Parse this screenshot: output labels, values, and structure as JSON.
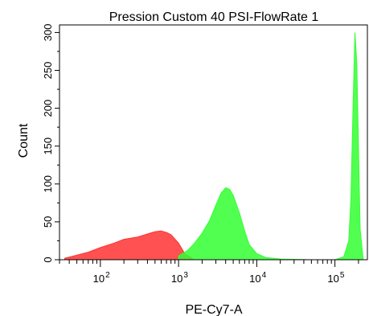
{
  "chart_data": {
    "type": "area",
    "title": "Pression Custom 40 PSI-FlowRate 1",
    "xlabel": "PE-Cy7-A",
    "ylabel": "Count",
    "x_scale": "log",
    "xlim": [
      30,
      260000
    ],
    "ylim": [
      0,
      310
    ],
    "x_major_ticks": [
      {
        "value": 100,
        "base": "10",
        "exp": "2"
      },
      {
        "value": 1000,
        "base": "10",
        "exp": "3"
      },
      {
        "value": 10000,
        "base": "10",
        "exp": "4"
      },
      {
        "value": 100000,
        "base": "10",
        "exp": "5"
      }
    ],
    "y_ticks": [
      "0",
      "50",
      "100",
      "150",
      "200",
      "250",
      "300"
    ],
    "y_tick_values": [
      0,
      50,
      100,
      150,
      200,
      250,
      300
    ],
    "series": [
      {
        "color": "#ff3333",
        "x": [
          35,
          50,
          70,
          100,
          150,
          200,
          300,
          400,
          500,
          600,
          700,
          800,
          1000,
          1200,
          1500
        ],
        "y": [
          2,
          6,
          10,
          16,
          22,
          27,
          30,
          34,
          37,
          38,
          36,
          33,
          22,
          8,
          2
        ]
      },
      {
        "color": "#33ff33",
        "x": [
          1000,
          1300,
          1600,
          2000,
          2500,
          3000,
          3500,
          4000,
          4500,
          5000,
          6000,
          7000,
          8000,
          10000,
          13000,
          20000,
          50000
        ],
        "y": [
          5,
          12,
          22,
          35,
          52,
          72,
          88,
          95,
          93,
          85,
          62,
          38,
          20,
          8,
          3,
          1,
          0
        ]
      },
      {
        "color": "#33ff33",
        "x": [
          100000,
          130000,
          150000,
          160000,
          170000,
          180000,
          190000,
          200000,
          210000,
          230000
        ],
        "y": [
          0,
          4,
          25,
          80,
          200,
          300,
          260,
          150,
          40,
          0
        ]
      }
    ]
  }
}
